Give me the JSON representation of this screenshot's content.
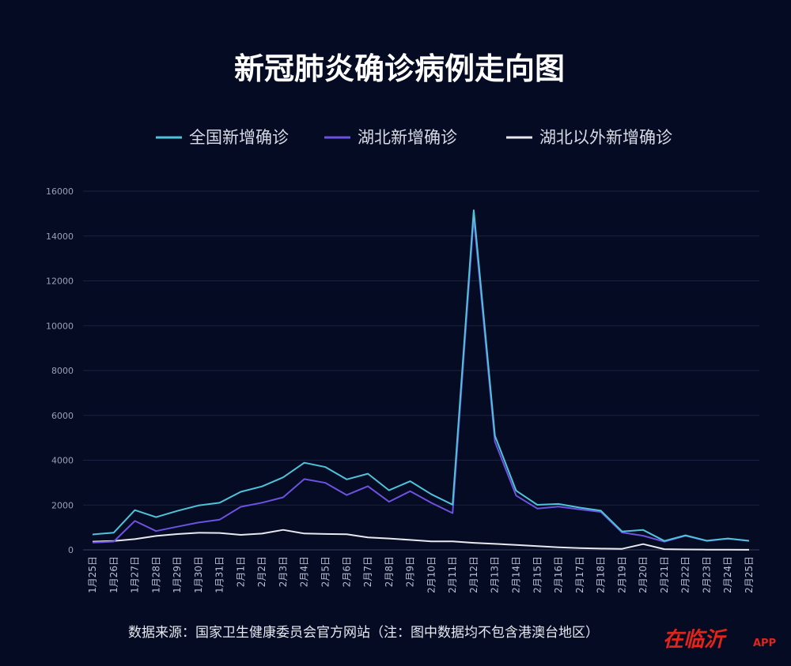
{
  "chart_data": {
    "type": "line",
    "title": "新冠肺炎确诊病例走向图",
    "categories": [
      "1月25日",
      "1月26日",
      "1月27日",
      "1月28日",
      "1月29日",
      "1月30日",
      "1月31日",
      "2月1日",
      "2月2日",
      "2月3日",
      "2月4日",
      "2月5日",
      "2月6日",
      "2月7日",
      "2月8日",
      "2月9日",
      "2月10日",
      "2月11日",
      "2月12日",
      "2月13日",
      "2月14日",
      "2月15日",
      "2月16日",
      "2月17日",
      "2月18日",
      "2月19日",
      "2月20日",
      "2月21日",
      "2月22日",
      "2月23日",
      "2月24日",
      "2月25日"
    ],
    "series": [
      {
        "name": "全国新增确诊",
        "color": "#4fc3d9",
        "values": [
          688,
          769,
          1771,
          1459,
          1737,
          1982,
          2102,
          2590,
          2829,
          3235,
          3887,
          3694,
          3143,
          3399,
          2656,
          3062,
          2478,
          2015,
          15152,
          5090,
          2641,
          2009,
          2048,
          1886,
          1749,
          820,
          889,
          397,
          648,
          409,
          508,
          406
        ]
      },
      {
        "name": "湖北新增确诊",
        "color": "#6c52e0",
        "values": [
          323,
          371,
          1291,
          840,
          1032,
          1220,
          1347,
          1921,
          2103,
          2345,
          3156,
          2987,
          2447,
          2841,
          2147,
          2618,
          2097,
          1638,
          14840,
          4823,
          2420,
          1843,
          1933,
          1807,
          1693,
          775,
          631,
          366,
          630,
          398,
          499,
          401
        ]
      },
      {
        "name": "湖北以外新增确诊",
        "color": "#e8e8ee",
        "values": [
          365,
          398,
          480,
          619,
          705,
          762,
          755,
          669,
          726,
          890,
          731,
          707,
          696,
          558,
          509,
          444,
          381,
          377,
          312,
          267,
          221,
          166,
          115,
          79,
          56,
          45,
          258,
          31,
          18,
          11,
          9,
          5
        ]
      }
    ],
    "ylim": [
      0,
      16000
    ],
    "yticks": [
      "0",
      "2000",
      "4000",
      "6000",
      "8000",
      "10000",
      "12000",
      "14000",
      "16000"
    ],
    "grid": true,
    "legend_position": "top",
    "xlabel": "",
    "ylabel": ""
  },
  "footer": {
    "source": "数据来源：国家卫生健康委员会官方网站（注：图中数据均不包含港澳台地区）",
    "logo": "在临沂",
    "logo_suffix": "APP"
  }
}
